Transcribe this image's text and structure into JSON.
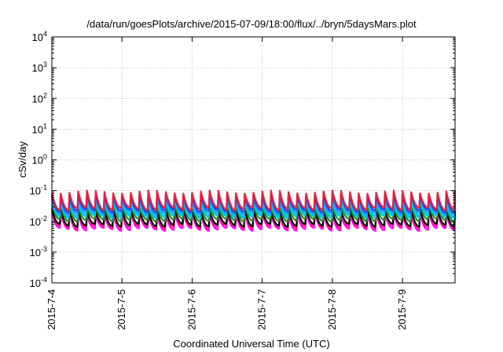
{
  "chart_data": {
    "type": "line",
    "title": "/data/run/goesPlots/archive/2015-07-09/18:00/flux/../bryn/5daysMars.plot",
    "xlabel": "Coordinated Universal Time (UTC)",
    "ylabel": "cSv/day",
    "yscale": "log",
    "ylim": [
      0.0001,
      10000
    ],
    "xlim": [
      "2015-07-04 00:00",
      "2015-07-09 18:00"
    ],
    "grid": true,
    "y_ticks": [
      {
        "base": "10",
        "exp": "-4",
        "value": 0.0001
      },
      {
        "base": "10",
        "exp": "-3",
        "value": 0.001
      },
      {
        "base": "10",
        "exp": "-2",
        "value": 0.01
      },
      {
        "base": "10",
        "exp": "-1",
        "value": 0.1
      },
      {
        "base": "10",
        "exp": "0",
        "value": 1
      },
      {
        "base": "10",
        "exp": "1",
        "value": 10
      },
      {
        "base": "10",
        "exp": "2",
        "value": 100
      },
      {
        "base": "10",
        "exp": "3",
        "value": 1000
      },
      {
        "base": "10",
        "exp": "4",
        "value": 10000
      }
    ],
    "x_ticks": [
      {
        "label": "2015-7-4",
        "value": "2015-07-04"
      },
      {
        "label": "2015-7-5",
        "value": "2015-07-05"
      },
      {
        "label": "2015-7-6",
        "value": "2015-07-06"
      },
      {
        "label": "2015-7-7",
        "value": "2015-07-07"
      },
      {
        "label": "2015-7-8",
        "value": "2015-07-08"
      },
      {
        "label": "2015-7-9",
        "value": "2015-07-09"
      }
    ],
    "sawtooth_period_hours": 3,
    "series": [
      {
        "color": "#ff00ff",
        "low": 0.0055,
        "high": 0.018
      },
      {
        "color": "#ff1493",
        "low": 0.0065,
        "high": 0.021
      },
      {
        "color": "#000000",
        "low": 0.0075,
        "high": 0.024
      },
      {
        "color": "#228b22",
        "low": 0.011,
        "high": 0.034
      },
      {
        "color": "#00ced1",
        "low": 0.014,
        "high": 0.045
      },
      {
        "color": "#00bfff",
        "low": 0.016,
        "high": 0.055
      },
      {
        "color": "#1e90ff",
        "low": 0.019,
        "high": 0.065
      },
      {
        "color": "#3a3ad8",
        "low": 0.022,
        "high": 0.075
      },
      {
        "color": "#e8203a",
        "low": 0.026,
        "high": 0.09
      }
    ]
  }
}
